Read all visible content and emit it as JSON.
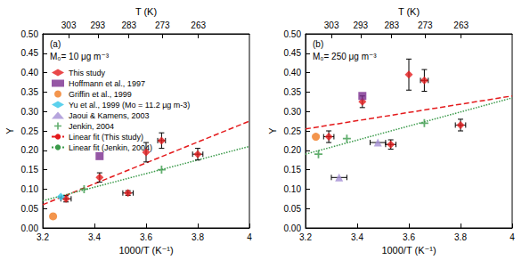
{
  "chart_data": [
    {
      "type": "scatter",
      "annotations": [
        "(a)",
        "M₀= 10 μg m⁻³"
      ],
      "x_label": "1000/T (K⁻¹)",
      "y_label": "Y",
      "x2_label": "T (K)",
      "xlim": [
        3.2,
        4
      ],
      "xticks": [
        3.2,
        3.4,
        3.6,
        3.8,
        4
      ],
      "x2ticks": [
        {
          "value": 3.30033,
          "label": "303"
        },
        {
          "value": 3.41297,
          "label": "293"
        },
        {
          "value": 3.53357,
          "label": "283"
        },
        {
          "value": 3.663,
          "label": "273"
        },
        {
          "value": 3.80228,
          "label": "263"
        }
      ],
      "ylim": [
        0,
        0.5
      ],
      "yticks": [
        {
          "value": 0,
          "label": "0.00"
        },
        {
          "value": 0.05,
          "label": "0.05"
        },
        {
          "value": 0.1,
          "label": "0.10"
        },
        {
          "value": 0.15,
          "label": "0.15"
        },
        {
          "value": 0.2,
          "label": "0.20"
        },
        {
          "value": 0.25,
          "label": "0.25"
        },
        {
          "value": 0.3,
          "label": "0.30"
        },
        {
          "value": 0.35,
          "label": "0.35"
        },
        {
          "value": 0.4,
          "label": "0.40"
        },
        {
          "value": 0.45,
          "label": "0.45"
        },
        {
          "value": 0.5,
          "label": "0.50"
        }
      ],
      "grid": false,
      "legend": "upper left",
      "series": [
        {
          "name": "This study",
          "type": "scatter",
          "color": "#e41a1c",
          "marker": "diamond",
          "x": [
            3.29,
            3.42,
            3.53,
            3.6,
            3.66,
            3.8
          ],
          "values": [
            0.075,
            0.13,
            0.09,
            0.195,
            0.225,
            0.19
          ],
          "xerr": [
            0.02,
            0,
            0.02,
            0,
            0.015,
            0.02
          ],
          "yerr": [
            0.008,
            0.012,
            0.006,
            0.025,
            0.02,
            0.015
          ]
        },
        {
          "name": "Hoffmann et al., 1997",
          "type": "scatter",
          "color": "#7b2d8e",
          "marker": "square",
          "x": [
            3.42
          ],
          "values": [
            0.185
          ]
        },
        {
          "name": "Griffin et al., 1999",
          "type": "scatter",
          "color": "#f07a20",
          "marker": "circle",
          "x": [
            3.24
          ],
          "values": [
            0.03
          ]
        },
        {
          "name": "Yu et al., 1999 (Mo = 11.2 µg m-3)",
          "type": "scatter",
          "color": "#33c6e8",
          "marker": "diamond",
          "x": [
            3.27
          ],
          "values": [
            0.08
          ]
        },
        {
          "name": "Jaoui & Kamens, 2003",
          "type": "scatter",
          "color": "#a48fd4",
          "marker": "triangle",
          "x": [],
          "values": []
        },
        {
          "name": "Jenkin, 2004",
          "type": "scatter",
          "color": "#3a9a4a",
          "marker": "plus",
          "x": [
            3.36,
            3.66
          ],
          "values": [
            0.1,
            0.15
          ]
        },
        {
          "name": "Linear fit (This study)",
          "type": "line",
          "color": "#e41a1c",
          "line_style": "dashed",
          "x": [
            3.2,
            4
          ],
          "values": [
            0.06,
            0.275
          ]
        },
        {
          "name": "Linear fit (Jenkin, 2004)",
          "type": "line",
          "color": "#3a9a4a",
          "line_style": "dotted",
          "x": [
            3.2,
            4
          ],
          "values": [
            0.07,
            0.21
          ]
        }
      ]
    },
    {
      "type": "scatter",
      "annotations": [
        "(b)",
        "M₀= 250 μg m⁻³"
      ],
      "x_label": "1000/T (K⁻¹)",
      "y_label": "Y",
      "x2_label": "T (K)",
      "xlim": [
        3.2,
        4
      ],
      "xticks": [
        3.2,
        3.4,
        3.6,
        3.8,
        4
      ],
      "x2ticks": [
        {
          "value": 3.30033,
          "label": "303"
        },
        {
          "value": 3.41297,
          "label": "293"
        },
        {
          "value": 3.53357,
          "label": "283"
        },
        {
          "value": 3.663,
          "label": "273"
        },
        {
          "value": 3.80228,
          "label": "263"
        }
      ],
      "ylim": [
        0,
        0.5
      ],
      "yticks": [
        {
          "value": 0,
          "label": "0.00"
        },
        {
          "value": 0.05,
          "label": "0.05"
        },
        {
          "value": 0.1,
          "label": "0.10"
        },
        {
          "value": 0.15,
          "label": "0.15"
        },
        {
          "value": 0.2,
          "label": "0.20"
        },
        {
          "value": 0.25,
          "label": "0.25"
        },
        {
          "value": 0.3,
          "label": "0.30"
        },
        {
          "value": 0.35,
          "label": "0.35"
        },
        {
          "value": 0.4,
          "label": "0.40"
        },
        {
          "value": 0.45,
          "label": "0.45"
        },
        {
          "value": 0.5,
          "label": "0.50"
        }
      ],
      "grid": false,
      "series": [
        {
          "name": "This study",
          "type": "scatter",
          "color": "#e41a1c",
          "marker": "diamond",
          "x": [
            3.29,
            3.42,
            3.53,
            3.6,
            3.66,
            3.8
          ],
          "values": [
            0.235,
            0.325,
            0.215,
            0.395,
            0.38,
            0.265
          ],
          "xerr": [
            0.02,
            0,
            0.02,
            0,
            0.015,
            0.02
          ],
          "yerr": [
            0.015,
            0.015,
            0.012,
            0.04,
            0.028,
            0.015
          ]
        },
        {
          "name": "Hoffmann et al., 1997",
          "type": "scatter",
          "color": "#7b2d8e",
          "marker": "square",
          "x": [
            3.42
          ],
          "values": [
            0.34
          ]
        },
        {
          "name": "Griffin et al., 1999",
          "type": "scatter",
          "color": "#f07a20",
          "marker": "circle",
          "x": [
            3.24
          ],
          "values": [
            0.235
          ]
        },
        {
          "name": "Jaoui & Kamens, 2003",
          "type": "scatter",
          "color": "#a48fd4",
          "marker": "triangle",
          "x": [
            3.33,
            3.48
          ],
          "values": [
            0.13,
            0.22
          ],
          "xerr": [
            0.03,
            0.03
          ],
          "yerr": [
            0,
            0
          ]
        },
        {
          "name": "Jenkin, 2004",
          "type": "scatter",
          "color": "#3a9a4a",
          "marker": "plus",
          "x": [
            3.25,
            3.36,
            3.66
          ],
          "values": [
            0.19,
            0.23,
            0.27
          ]
        },
        {
          "name": "Linear fit (This study)",
          "type": "line",
          "color": "#e41a1c",
          "line_style": "dashed",
          "x": [
            3.2,
            4
          ],
          "values": [
            0.255,
            0.34
          ]
        },
        {
          "name": "Linear fit (Jenkin, 2004)",
          "type": "line",
          "color": "#3a9a4a",
          "line_style": "dotted",
          "x": [
            3.2,
            4
          ],
          "values": [
            0.19,
            0.335
          ]
        }
      ]
    }
  ]
}
